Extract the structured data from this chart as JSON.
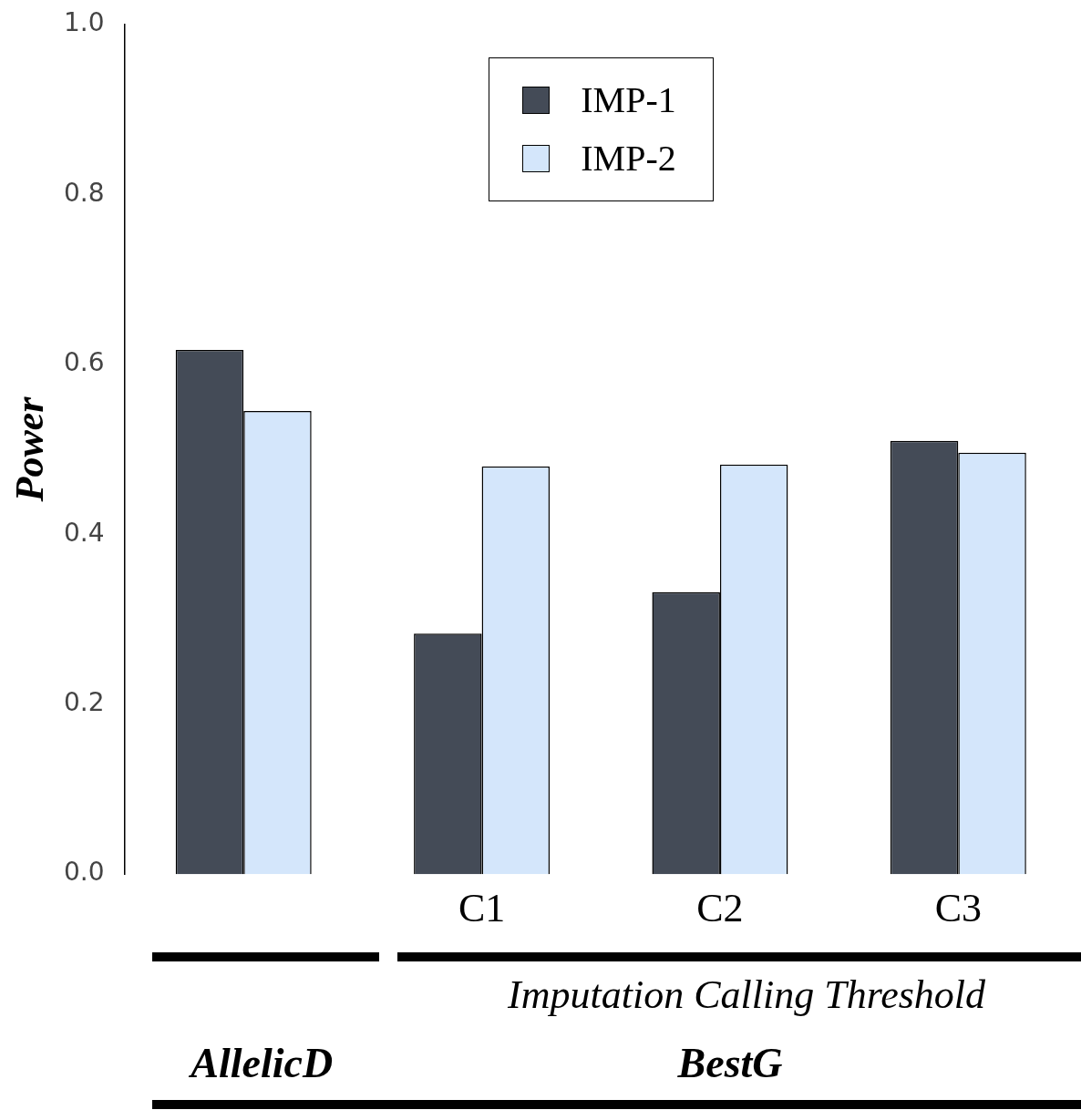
{
  "chart_data": {
    "type": "bar",
    "ylabel": "Power",
    "categories": [
      null,
      "C1",
      "C2",
      "C3"
    ],
    "series": [
      {
        "name": "IMP-1",
        "color": "#444b57",
        "values": [
          0.617,
          0.283,
          0.332,
          0.51
        ]
      },
      {
        "name": "IMP-2",
        "color": "#d4e6fb",
        "values": [
          0.545,
          0.48,
          0.482,
          0.496
        ]
      }
    ],
    "ylim": [
      0,
      1
    ],
    "yticks": [
      {
        "value": 0,
        "label": "0.0"
      },
      0.2,
      0.4,
      0.6,
      0.8,
      {
        "value": 1,
        "label": "1.0"
      }
    ],
    "grid": false,
    "legend": "top",
    "annotations": [
      "Imputation Calling Threshold",
      "AllelicD",
      "BestG"
    ]
  }
}
